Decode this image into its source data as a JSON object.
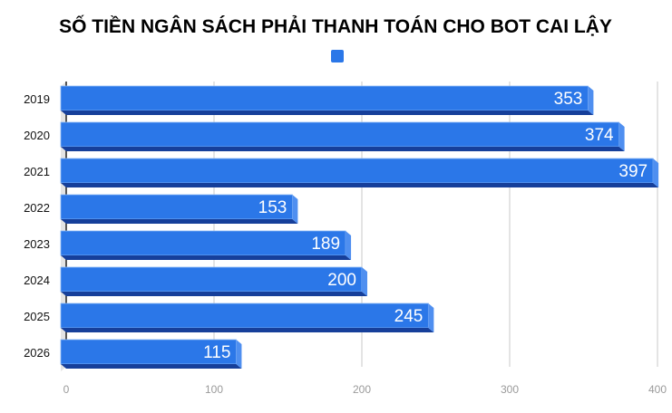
{
  "chart_data": {
    "type": "bar",
    "orientation": "horizontal",
    "style": "3d",
    "title": "SỐ TIỀN NGÂN SÁCH PHẢI THANH TOÁN CHO BOT CAI LẬY",
    "categories": [
      "2019",
      "2020",
      "2021",
      "2022",
      "2023",
      "2024",
      "2025",
      "2026"
    ],
    "series": [
      {
        "values": [
          353,
          374,
          397,
          153,
          189,
          200,
          245,
          115
        ]
      }
    ],
    "data_labels": [
      "353",
      "374",
      "397",
      "153",
      "189",
      "200",
      "245",
      "115"
    ],
    "xlim": [
      0,
      400
    ],
    "x_ticks": [
      "0",
      "100",
      "200",
      "300",
      "400"
    ],
    "grid": true,
    "legend": "top",
    "colors": {
      "bar": "#2b77e8",
      "bar_dark": "#163f9a",
      "bar_edge": "#8ab8f5",
      "grid": "#c8c8c8",
      "tick": "#9a9a9a"
    }
  }
}
